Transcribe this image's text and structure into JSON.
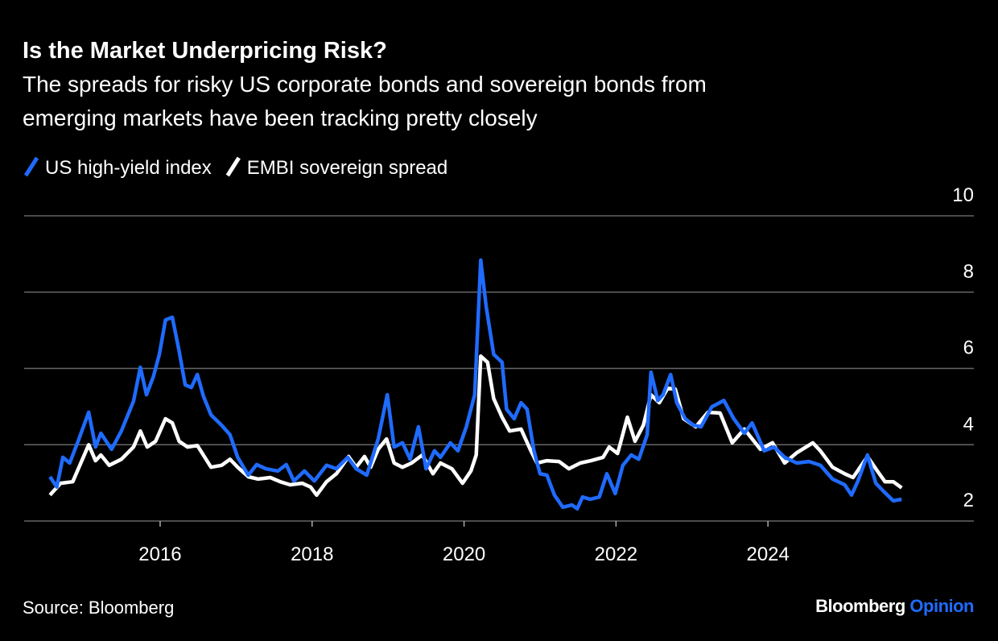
{
  "chart_data": {
    "type": "line",
    "title": "Is the Market Underpricing Risk?",
    "subtitle": [
      "The spreads for risky US corporate bonds and sovereign bonds from",
      "emerging markets have been tracking pretty closely"
    ],
    "source": "Source: Bloomberg",
    "brand": [
      "Bloomberg",
      "Opinion"
    ],
    "xlim": [
      2014.21,
      2026.71
    ],
    "xticks": [
      2016,
      2018,
      2020,
      2022,
      2024
    ],
    "ylim": [
      2,
      10
    ],
    "yticks": [
      2,
      4,
      6,
      8,
      10
    ],
    "grid": true,
    "series": [
      {
        "name": "US high-yield index",
        "color": "#1f6bff",
        "x": [
          2014.55,
          2014.64,
          2014.72,
          2014.81,
          2014.92,
          2015.06,
          2015.15,
          2015.22,
          2015.36,
          2015.49,
          2015.65,
          2015.74,
          2015.82,
          2015.91,
          2015.99,
          2016.07,
          2016.16,
          2016.25,
          2016.33,
          2016.41,
          2016.49,
          2016.57,
          2016.67,
          2016.81,
          2016.92,
          2017.02,
          2017.16,
          2017.27,
          2017.39,
          2017.55,
          2017.66,
          2017.76,
          2017.9,
          2018.03,
          2018.19,
          2018.32,
          2018.47,
          2018.58,
          2018.72,
          2018.87,
          2018.99,
          2019.08,
          2019.19,
          2019.29,
          2019.4,
          2019.5,
          2019.61,
          2019.69,
          2019.82,
          2019.92,
          2020.03,
          2020.14,
          2020.22,
          2020.29,
          2020.39,
          2020.5,
          2020.56,
          2020.66,
          2020.75,
          2020.83,
          2020.92,
          2021.0,
          2021.09,
          2021.19,
          2021.3,
          2021.42,
          2021.49,
          2021.56,
          2021.66,
          2021.78,
          2021.88,
          2021.99,
          2022.09,
          2022.2,
          2022.3,
          2022.41,
          2022.46,
          2022.55,
          2022.62,
          2022.72,
          2022.8,
          2022.91,
          2023.02,
          2023.12,
          2023.26,
          2023.42,
          2023.55,
          2023.69,
          2023.79,
          2023.95,
          2024.08,
          2024.22,
          2024.38,
          2024.54,
          2024.69,
          2024.85,
          2025.01,
          2025.1,
          2025.18,
          2025.31,
          2025.42,
          2025.52,
          2025.65,
          2025.76
        ],
        "values": [
          3.16,
          2.89,
          3.67,
          3.52,
          4.09,
          4.85,
          3.94,
          4.3,
          3.88,
          4.36,
          5.14,
          6.03,
          5.31,
          5.78,
          6.37,
          7.27,
          7.34,
          6.45,
          5.57,
          5.5,
          5.84,
          5.27,
          4.78,
          4.51,
          4.26,
          3.67,
          3.2,
          3.48,
          3.37,
          3.31,
          3.48,
          3.05,
          3.31,
          3.05,
          3.46,
          3.37,
          3.67,
          3.37,
          3.2,
          4.15,
          5.31,
          3.94,
          4.05,
          3.62,
          4.47,
          3.37,
          3.84,
          3.67,
          4.05,
          3.84,
          4.47,
          5.31,
          8.84,
          7.63,
          6.37,
          6.16,
          4.93,
          4.68,
          5.1,
          4.93,
          3.84,
          3.24,
          3.2,
          2.68,
          2.36,
          2.42,
          2.32,
          2.63,
          2.57,
          2.63,
          3.24,
          2.72,
          3.46,
          3.73,
          3.62,
          4.26,
          5.9,
          5.16,
          5.31,
          5.84,
          5.1,
          4.68,
          4.51,
          4.47,
          4.99,
          5.16,
          4.68,
          4.3,
          4.57,
          3.84,
          3.94,
          3.67,
          3.52,
          3.56,
          3.46,
          3.1,
          2.95,
          2.68,
          3.03,
          3.73,
          2.99,
          2.78,
          2.53,
          2.57
        ]
      },
      {
        "name": "EMBI sovereign spread",
        "color": "#ffffff",
        "x": [
          2014.55,
          2014.69,
          2014.85,
          2015.06,
          2015.15,
          2015.22,
          2015.33,
          2015.49,
          2015.65,
          2015.74,
          2015.83,
          2015.94,
          2016.07,
          2016.16,
          2016.25,
          2016.36,
          2016.49,
          2016.67,
          2016.81,
          2016.92,
          2017.02,
          2017.16,
          2017.29,
          2017.45,
          2017.58,
          2017.71,
          2017.87,
          2017.98,
          2018.06,
          2018.19,
          2018.32,
          2018.48,
          2018.58,
          2018.69,
          2018.77,
          2018.87,
          2018.98,
          2019.08,
          2019.19,
          2019.31,
          2019.45,
          2019.59,
          2019.69,
          2019.84,
          2019.98,
          2020.09,
          2020.16,
          2020.22,
          2020.31,
          2020.39,
          2020.5,
          2020.6,
          2020.75,
          2020.88,
          2020.96,
          2021.09,
          2021.25,
          2021.38,
          2021.53,
          2021.67,
          2021.83,
          2021.91,
          2022.02,
          2022.06,
          2022.15,
          2022.25,
          2022.36,
          2022.46,
          2022.57,
          2022.68,
          2022.78,
          2022.89,
          2023.05,
          2023.21,
          2023.37,
          2023.53,
          2023.69,
          2023.9,
          2024.06,
          2024.22,
          2024.38,
          2024.59,
          2024.69,
          2024.85,
          2025.01,
          2025.12,
          2025.31,
          2025.44,
          2025.54,
          2025.65,
          2025.76
        ],
        "values": [
          2.68,
          2.99,
          3.03,
          4.0,
          3.58,
          3.73,
          3.46,
          3.62,
          3.94,
          4.36,
          3.94,
          4.09,
          4.68,
          4.57,
          4.09,
          3.94,
          3.98,
          3.41,
          3.46,
          3.62,
          3.41,
          3.16,
          3.1,
          3.14,
          3.03,
          2.95,
          2.99,
          2.89,
          2.68,
          3.03,
          3.24,
          3.69,
          3.41,
          3.69,
          3.41,
          3.88,
          4.15,
          3.52,
          3.41,
          3.52,
          3.73,
          3.24,
          3.52,
          3.37,
          2.99,
          3.31,
          3.73,
          6.32,
          6.16,
          5.21,
          4.72,
          4.36,
          4.41,
          3.84,
          3.52,
          3.58,
          3.56,
          3.37,
          3.52,
          3.58,
          3.67,
          3.94,
          3.77,
          4.05,
          4.72,
          4.09,
          4.51,
          5.31,
          5.1,
          5.48,
          5.46,
          4.68,
          4.47,
          4.85,
          4.83,
          4.05,
          4.41,
          3.88,
          4.05,
          3.52,
          3.79,
          4.05,
          3.84,
          3.41,
          3.24,
          3.14,
          3.69,
          3.31,
          3.03,
          3.03,
          2.87
        ]
      }
    ]
  }
}
